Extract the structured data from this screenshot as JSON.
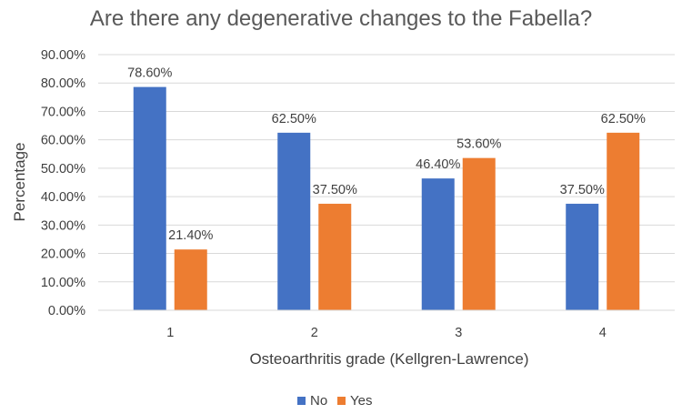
{
  "chart_data": {
    "type": "bar",
    "title": "Are there any degenerative changes to the Fabella?",
    "xlabel": "Osteoarthritis grade (Kellgren-Lawrence)",
    "ylabel": "Percentage",
    "categories": [
      "1",
      "2",
      "3",
      "4"
    ],
    "series": [
      {
        "name": "No",
        "color": "#4472C4",
        "values": [
          78.6,
          62.5,
          46.4,
          37.5
        ],
        "labels": [
          "78.60%",
          "62.50%",
          "46.40%",
          "37.50%"
        ]
      },
      {
        "name": "Yes",
        "color": "#ED7D31",
        "values": [
          21.4,
          37.5,
          53.6,
          62.5
        ],
        "labels": [
          "21.40%",
          "37.50%",
          "53.60%",
          "62.50%"
        ]
      }
    ],
    "ylim": [
      0,
      90
    ],
    "yticks": [
      0,
      10,
      20,
      30,
      40,
      50,
      60,
      70,
      80,
      90
    ],
    "ytick_labels": [
      "0.00%",
      "10.00%",
      "20.00%",
      "30.00%",
      "40.00%",
      "50.00%",
      "60.00%",
      "70.00%",
      "80.00%",
      "90.00%"
    ],
    "grid": true,
    "legend_position": "bottom"
  }
}
